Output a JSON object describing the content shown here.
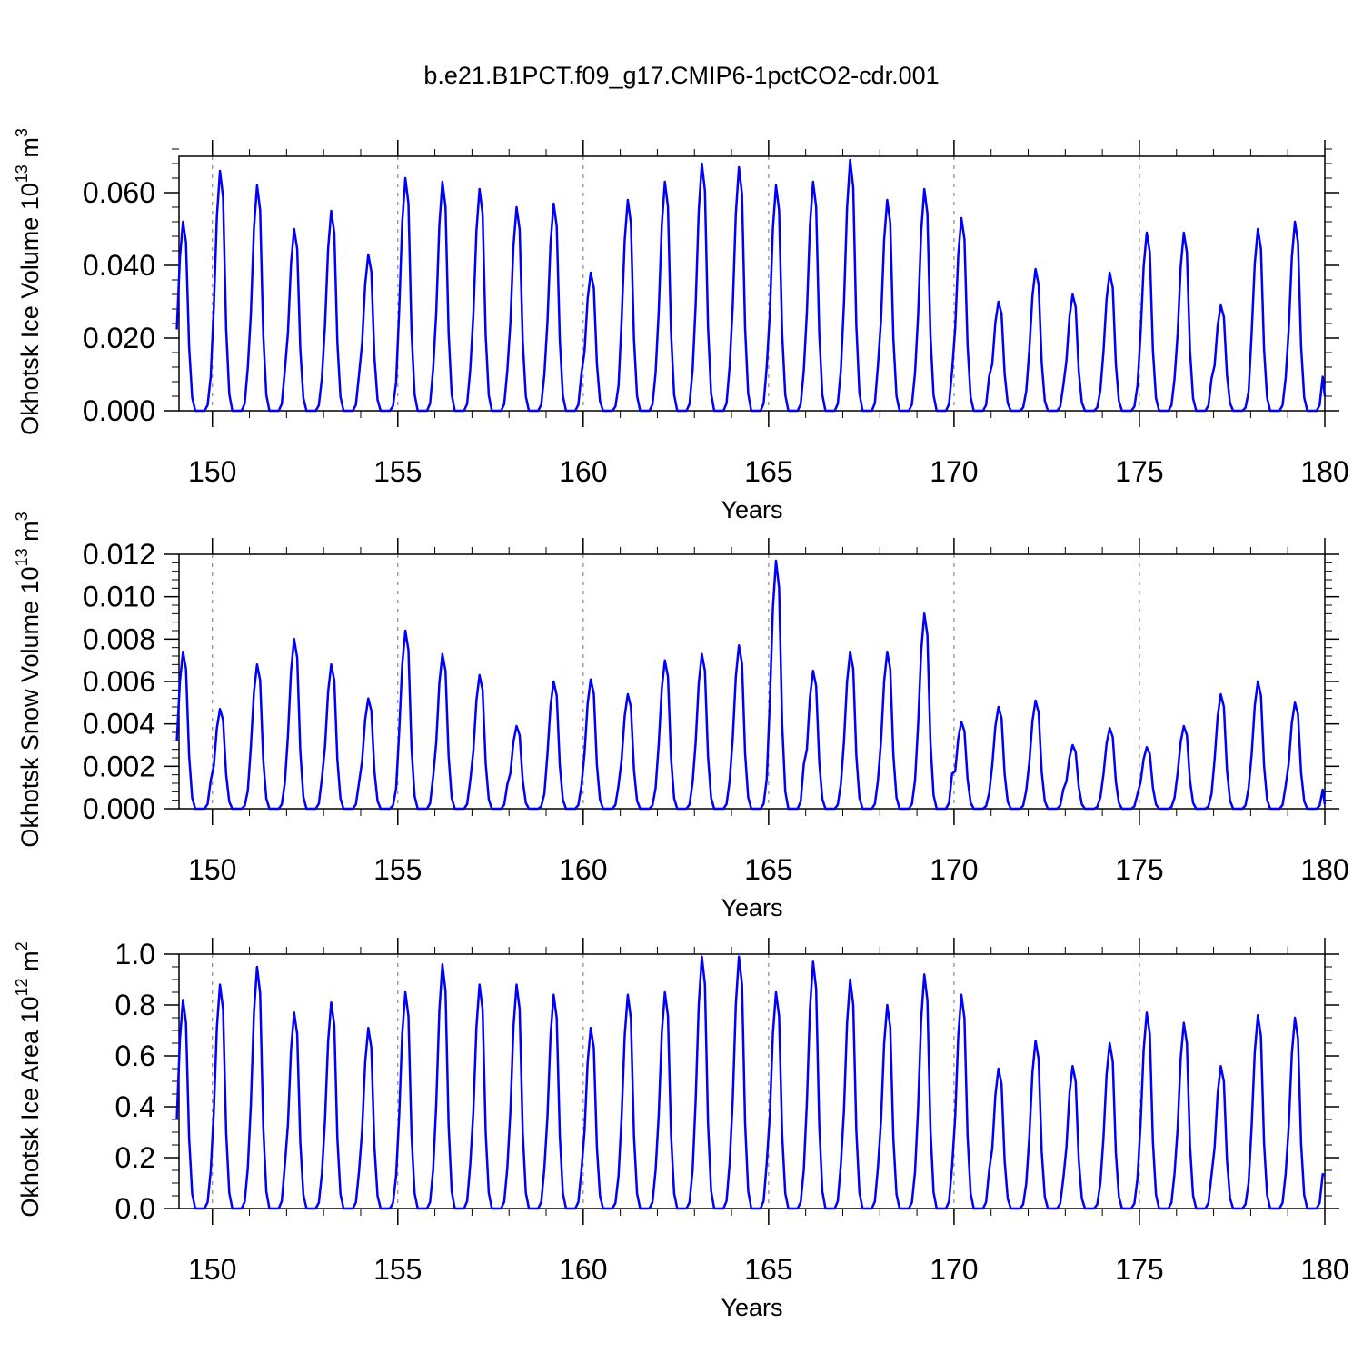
{
  "title": "b.e21.B1PCT.f09_g17.CMIP6-1pctCO2-cdr.001",
  "colors": {
    "line": "#0000ff",
    "axis": "#000000",
    "grid": "#888888"
  },
  "chart_data": [
    {
      "type": "line",
      "xlabel": "Years",
      "ylabel": {
        "text": "Okhotsk Ice Volume 10",
        "sup": "13",
        "unit": " m",
        "unit_sup": "3"
      },
      "xlim": [
        149.1,
        180
      ],
      "ylim": [
        0,
        0.07
      ],
      "xticks": [
        150,
        155,
        160,
        165,
        170,
        175,
        180
      ],
      "xtick_labels": [
        "150",
        "155",
        "160",
        "165",
        "170",
        "175",
        "180"
      ],
      "yticks": [
        0,
        0.02,
        0.04,
        0.06
      ],
      "ytick_labels": [
        "0.000",
        "0.020",
        "0.040",
        "0.060"
      ],
      "yminor_step": 0.004,
      "grid": "dashed vertical at major x ticks",
      "start_year": 149.04,
      "step": 0.0833,
      "peaks": [
        0.052,
        0.066,
        0.062,
        0.05,
        0.055,
        0.043,
        0.064,
        0.063,
        0.061,
        0.056,
        0.057,
        0.038,
        0.058,
        0.063,
        0.068,
        0.067,
        0.062,
        0.063,
        0.069,
        0.058,
        0.061,
        0.053,
        0.03,
        0.039,
        0.032,
        0.038,
        0.049,
        0.049,
        0.029,
        0.05,
        0.052
      ],
      "final_value": 0.004
    },
    {
      "type": "line",
      "xlabel": "Years",
      "ylabel": {
        "text": "Okhotsk Snow Volume 10",
        "sup": "13",
        "unit": " m",
        "unit_sup": "3"
      },
      "xlim": [
        149.1,
        180
      ],
      "ylim": [
        0,
        0.012
      ],
      "xticks": [
        150,
        155,
        160,
        165,
        170,
        175,
        180
      ],
      "xtick_labels": [
        "150",
        "155",
        "160",
        "165",
        "170",
        "175",
        "180"
      ],
      "yticks": [
        0,
        0.002,
        0.004,
        0.006,
        0.008,
        0.01,
        0.012
      ],
      "ytick_labels": [
        "0.000",
        "0.002",
        "0.004",
        "0.006",
        "0.008",
        "0.010",
        "0.012"
      ],
      "yminor_step": 0.0004,
      "grid": "dashed vertical at major x ticks",
      "start_year": 149.04,
      "step": 0.0833,
      "peaks": [
        0.0074,
        0.0047,
        0.0068,
        0.008,
        0.0068,
        0.0052,
        0.0084,
        0.0073,
        0.0063,
        0.0039,
        0.006,
        0.0061,
        0.0054,
        0.007,
        0.0073,
        0.0077,
        0.0117,
        0.0065,
        0.0074,
        0.0074,
        0.0092,
        0.0041,
        0.0048,
        0.0051,
        0.003,
        0.0038,
        0.0029,
        0.0039,
        0.0054,
        0.006,
        0.005
      ],
      "final_value": 0.0002
    },
    {
      "type": "line",
      "xlabel": "Years",
      "ylabel": {
        "text": "Okhotsk Ice Area 10",
        "sup": "12",
        "unit": " m",
        "unit_sup": "2"
      },
      "xlim": [
        149.1,
        180
      ],
      "ylim": [
        0,
        1.0
      ],
      "xticks": [
        150,
        155,
        160,
        165,
        170,
        175,
        180
      ],
      "xtick_labels": [
        "150",
        "155",
        "160",
        "165",
        "170",
        "175",
        "180"
      ],
      "yticks": [
        0,
        0.2,
        0.4,
        0.6,
        0.8,
        1.0
      ],
      "ytick_labels": [
        "0.0",
        "0.2",
        "0.4",
        "0.6",
        "0.8",
        "1.0"
      ],
      "yminor_step": 0.05,
      "grid": "dashed vertical at major x ticks",
      "start_year": 149.04,
      "step": 0.0833,
      "peaks": [
        0.82,
        0.88,
        0.95,
        0.77,
        0.81,
        0.71,
        0.85,
        0.96,
        0.88,
        0.88,
        0.84,
        0.71,
        0.84,
        0.85,
        0.99,
        0.99,
        0.85,
        0.97,
        0.9,
        0.8,
        0.92,
        0.84,
        0.55,
        0.66,
        0.56,
        0.65,
        0.77,
        0.73,
        0.56,
        0.76,
        0.75
      ],
      "final_value": 0.13
    }
  ]
}
